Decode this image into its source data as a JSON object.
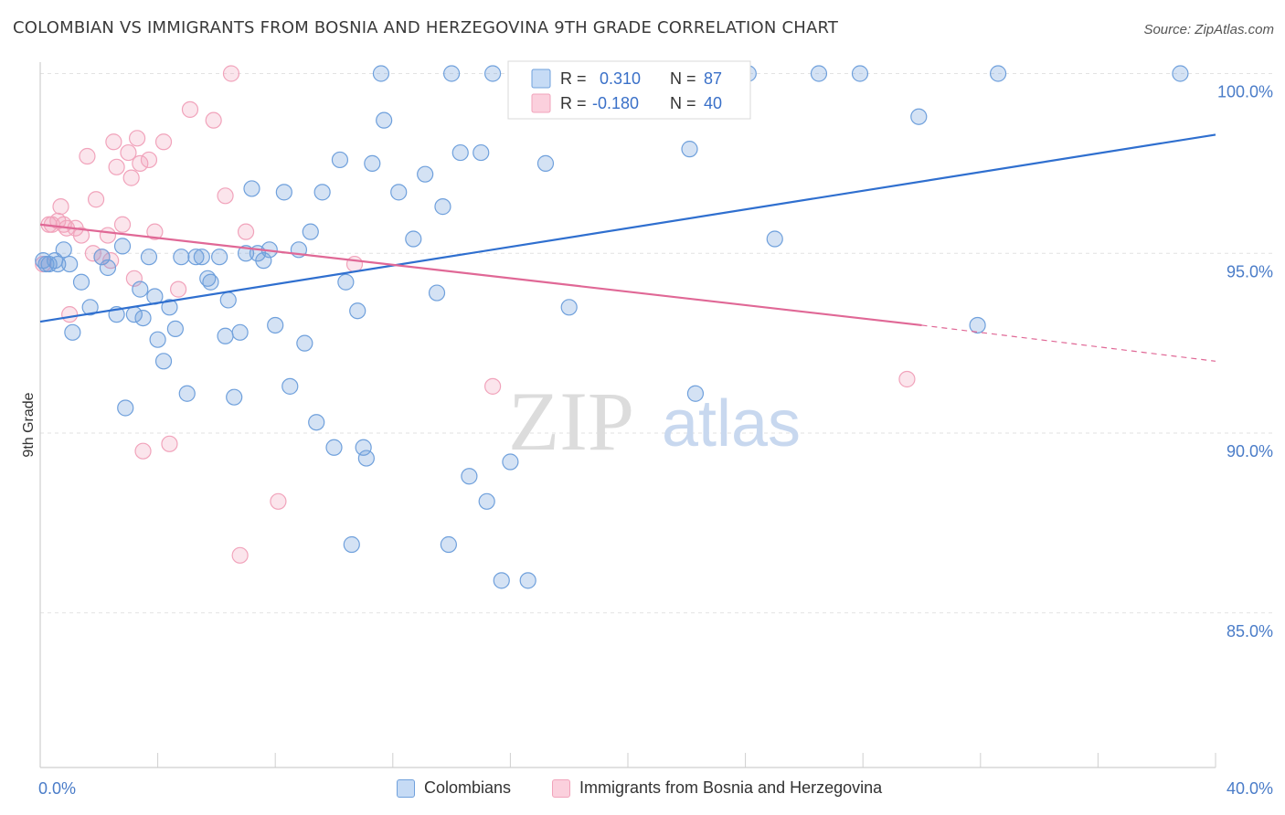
{
  "title": "COLOMBIAN VS IMMIGRANTS FROM BOSNIA AND HERZEGOVINA 9TH GRADE CORRELATION CHART",
  "source": "Source: ZipAtlas.com",
  "watermark": {
    "zip": "ZIP",
    "atlas": "atlas"
  },
  "colors": {
    "blue": "#6fa0dc",
    "blue_line": "#2f6fcf",
    "pink": "#f1a3bb",
    "pink_line": "#e06896",
    "axis_text": "#4a7cc8",
    "grid": "#e0e0e0"
  },
  "legend": {
    "rows": [
      {
        "r_label": "R =",
        "r_value": "0.310",
        "n_label": "N =",
        "n_value": "87"
      },
      {
        "r_label": "R =",
        "r_value": "-0.180",
        "n_label": "N =",
        "n_value": "40"
      }
    ]
  },
  "bottom_legend": {
    "colombians": "Colombians",
    "bosnia": "Immigrants from Bosnia and Herzegovina"
  },
  "chart_data": {
    "type": "scatter",
    "title": "COLOMBIAN VS IMMIGRANTS FROM BOSNIA AND HERZEGOVINA 9TH GRADE CORRELATION CHART",
    "xlabel": "",
    "ylabel": "9th Grade",
    "xlim": [
      0,
      40
    ],
    "ylim": [
      80.7,
      100.7
    ],
    "x_tick_labels": [
      "0.0%",
      "40.0%"
    ],
    "y_ticks": [
      85,
      90,
      95,
      100
    ],
    "y_tick_labels": [
      "85.0%",
      "90.0%",
      "95.0%",
      "100.0%"
    ],
    "grid": true,
    "series": [
      {
        "name": "Colombians",
        "color": "#6fa0dc",
        "trend": {
          "x0": 0,
          "y0": 93.1,
          "x1": 40,
          "y1": 98.3
        },
        "points": [
          [
            0.1,
            94.8
          ],
          [
            0.3,
            94.7
          ],
          [
            0.5,
            94.8
          ],
          [
            0.6,
            94.7
          ],
          [
            0.8,
            95.1
          ],
          [
            1.0,
            94.7
          ],
          [
            1.1,
            92.8
          ],
          [
            1.4,
            94.2
          ],
          [
            1.7,
            93.5
          ],
          [
            2.1,
            94.9
          ],
          [
            2.3,
            94.6
          ],
          [
            2.6,
            93.3
          ],
          [
            2.8,
            95.2
          ],
          [
            2.9,
            90.7
          ],
          [
            3.2,
            93.3
          ],
          [
            3.4,
            94.0
          ],
          [
            3.5,
            93.2
          ],
          [
            3.7,
            94.9
          ],
          [
            3.9,
            93.8
          ],
          [
            4.0,
            92.6
          ],
          [
            4.2,
            92.0
          ],
          [
            4.4,
            93.5
          ],
          [
            4.6,
            92.9
          ],
          [
            4.8,
            94.9
          ],
          [
            5.0,
            91.1
          ],
          [
            5.3,
            94.9
          ],
          [
            5.5,
            94.9
          ],
          [
            5.7,
            94.3
          ],
          [
            5.8,
            94.2
          ],
          [
            6.1,
            94.9
          ],
          [
            6.3,
            92.7
          ],
          [
            6.4,
            93.7
          ],
          [
            6.6,
            91.0
          ],
          [
            6.8,
            92.8
          ],
          [
            7.0,
            95.0
          ],
          [
            7.2,
            96.8
          ],
          [
            7.4,
            95.0
          ],
          [
            7.6,
            94.8
          ],
          [
            7.8,
            95.1
          ],
          [
            8.0,
            93.0
          ],
          [
            8.3,
            96.7
          ],
          [
            8.5,
            91.3
          ],
          [
            8.8,
            95.1
          ],
          [
            9.0,
            92.5
          ],
          [
            9.2,
            95.6
          ],
          [
            9.4,
            90.3
          ],
          [
            9.6,
            96.7
          ],
          [
            10.0,
            89.6
          ],
          [
            10.2,
            97.6
          ],
          [
            10.4,
            94.2
          ],
          [
            10.6,
            86.9
          ],
          [
            10.8,
            93.4
          ],
          [
            11.0,
            89.6
          ],
          [
            11.1,
            89.3
          ],
          [
            11.3,
            97.5
          ],
          [
            11.6,
            100.0
          ],
          [
            11.7,
            98.7
          ],
          [
            12.2,
            96.7
          ],
          [
            12.7,
            95.4
          ],
          [
            13.1,
            97.2
          ],
          [
            13.5,
            93.9
          ],
          [
            13.7,
            96.3
          ],
          [
            13.9,
            86.9
          ],
          [
            14.0,
            100.0
          ],
          [
            14.3,
            97.8
          ],
          [
            14.6,
            88.8
          ],
          [
            15.0,
            97.8
          ],
          [
            15.2,
            88.1
          ],
          [
            15.4,
            100.0
          ],
          [
            15.7,
            85.9
          ],
          [
            16.0,
            89.2
          ],
          [
            16.3,
            100.0
          ],
          [
            16.6,
            85.9
          ],
          [
            17.0,
            100.0
          ],
          [
            17.2,
            97.5
          ],
          [
            18.0,
            93.5
          ],
          [
            22.1,
            97.9
          ],
          [
            22.3,
            91.1
          ],
          [
            24.1,
            100.0
          ],
          [
            25.0,
            95.4
          ],
          [
            26.5,
            100.0
          ],
          [
            27.9,
            100.0
          ],
          [
            29.9,
            98.8
          ],
          [
            31.9,
            93.0
          ],
          [
            32.6,
            100.0
          ],
          [
            38.8,
            100.0
          ],
          [
            0.2,
            94.7
          ]
        ]
      },
      {
        "name": "Immigrants from Bosnia and Herzegovina",
        "color": "#f1a3bb",
        "trend": {
          "x0": 0,
          "y0": 95.8,
          "x1": 30.0,
          "y1": 93.0,
          "dash_x1": 40,
          "dash_y1": 92.0
        },
        "points": [
          [
            0.1,
            94.7
          ],
          [
            0.3,
            95.8
          ],
          [
            0.6,
            95.9
          ],
          [
            0.7,
            96.3
          ],
          [
            0.9,
            95.7
          ],
          [
            1.0,
            93.3
          ],
          [
            1.2,
            95.7
          ],
          [
            1.4,
            95.5
          ],
          [
            1.6,
            97.7
          ],
          [
            1.8,
            95.0
          ],
          [
            1.9,
            96.5
          ],
          [
            2.1,
            94.9
          ],
          [
            2.3,
            95.5
          ],
          [
            2.4,
            94.8
          ],
          [
            2.5,
            98.1
          ],
          [
            2.6,
            97.4
          ],
          [
            2.8,
            95.8
          ],
          [
            3.0,
            97.8
          ],
          [
            3.1,
            97.1
          ],
          [
            3.2,
            94.3
          ],
          [
            3.3,
            98.2
          ],
          [
            3.4,
            97.5
          ],
          [
            3.5,
            89.5
          ],
          [
            3.7,
            97.6
          ],
          [
            3.9,
            95.6
          ],
          [
            4.2,
            98.1
          ],
          [
            4.4,
            89.7
          ],
          [
            4.7,
            94.0
          ],
          [
            5.1,
            99.0
          ],
          [
            5.9,
            98.7
          ],
          [
            6.3,
            96.6
          ],
          [
            6.5,
            100.0
          ],
          [
            6.8,
            86.6
          ],
          [
            7.0,
            95.6
          ],
          [
            8.1,
            88.1
          ],
          [
            10.7,
            94.7
          ],
          [
            15.4,
            91.3
          ],
          [
            29.5,
            91.5
          ],
          [
            0.4,
            95.8
          ],
          [
            0.8,
            95.8
          ]
        ]
      }
    ]
  }
}
